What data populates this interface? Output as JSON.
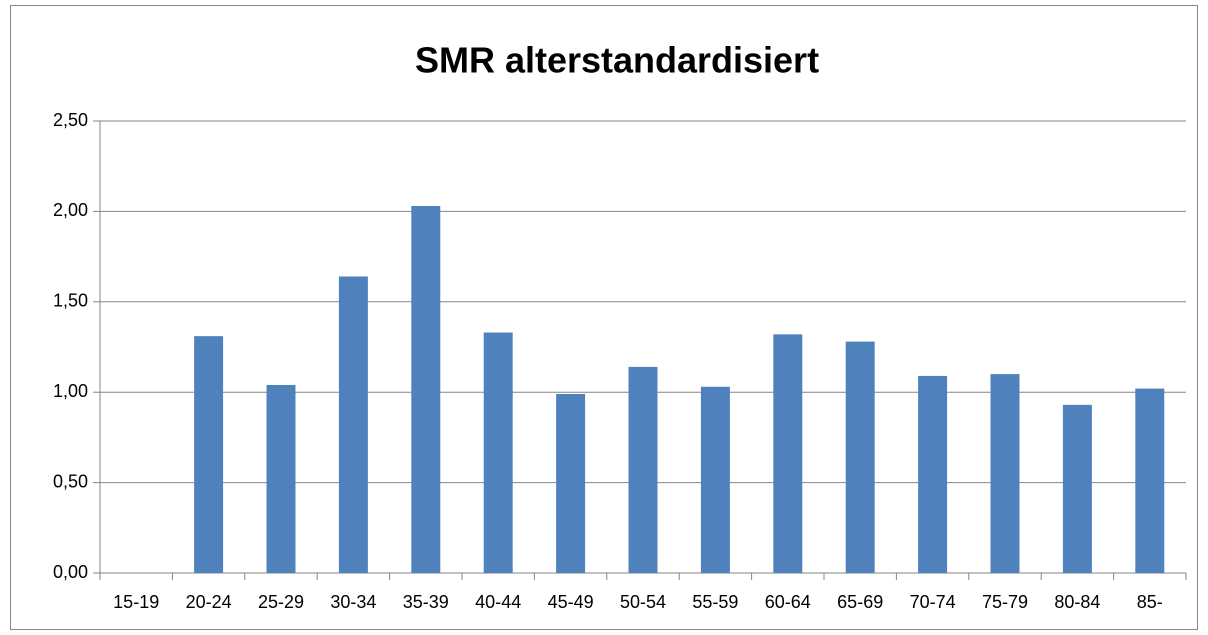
{
  "chart_data": {
    "type": "bar",
    "title": "SMR alterstandardisiert",
    "categories": [
      "15-19",
      "20-24",
      "25-29",
      "30-34",
      "35-39",
      "40-44",
      "45-49",
      "50-54",
      "55-59",
      "60-64",
      "65-69",
      "70-74",
      "75-79",
      "80-84",
      "85-"
    ],
    "values": [
      0,
      1.31,
      1.04,
      1.64,
      2.03,
      1.33,
      0.99,
      1.14,
      1.03,
      1.32,
      1.28,
      1.09,
      1.1,
      0.93,
      1.02
    ],
    "color": "#4f81bd",
    "ylim": [
      0,
      2.5
    ],
    "yticks": [
      {
        "value": 0,
        "label": "0,00"
      },
      {
        "value": 0.5,
        "label": "0,50"
      },
      {
        "value": 1,
        "label": "1,00"
      },
      {
        "value": 1.5,
        "label": "1,50"
      },
      {
        "value": 2,
        "label": "2,00"
      },
      {
        "value": 2.5,
        "label": "2,50"
      }
    ],
    "grid": true
  }
}
